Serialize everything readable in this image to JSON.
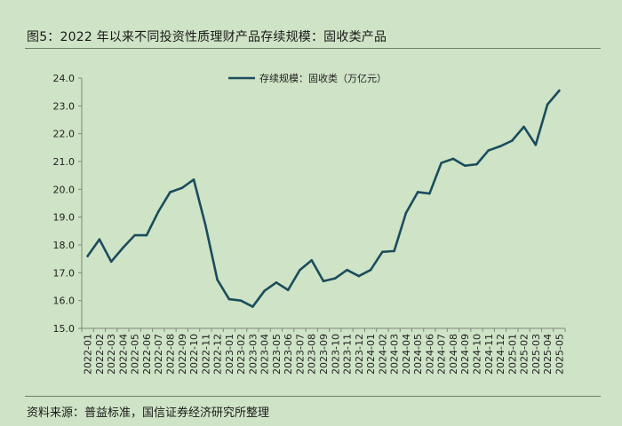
{
  "header": {
    "title": "图5：2022 年以来不同投资性质理财产品存续规模：固收类产品"
  },
  "footer": {
    "source": "资料来源：普益标准，国信证券经济研究所整理"
  },
  "chart_data": {
    "type": "line",
    "title": "图5：2022 年以来不同投资性质理财产品存续规模：固收类产品",
    "xlabel": "",
    "ylabel": "",
    "ylim": [
      15.0,
      24.0
    ],
    "yticks": [
      "15.0",
      "16.0",
      "17.0",
      "18.0",
      "19.0",
      "20.0",
      "21.0",
      "22.0",
      "23.0",
      "24.0"
    ],
    "grid": false,
    "legend_position": "top-center",
    "line_color": "#1b4d5c",
    "x": [
      "2022-01",
      "2022-02",
      "2022-03",
      "2022-04",
      "2022-05",
      "2022-06",
      "2022-07",
      "2022-08",
      "2022-09",
      "2022-10",
      "2022-11",
      "2022-12",
      "2023-01",
      "2023-02",
      "2023-03",
      "2023-04",
      "2023-05",
      "2023-06",
      "2023-07",
      "2023-08",
      "2023-09",
      "2023-10",
      "2023-11",
      "2023-12",
      "2024-01",
      "2024-02",
      "2024-03",
      "2024-04",
      "2024-05",
      "2024-06",
      "2024-07",
      "2024-08",
      "2024-09",
      "2024-10",
      "2024-11",
      "2024-12",
      "2025-01",
      "2025-02",
      "2025-03",
      "2025-04",
      "2025-05"
    ],
    "series": [
      {
        "name": "存续规模：固收类（万亿元）",
        "values": [
          17.6,
          18.2,
          17.4,
          17.9,
          18.35,
          18.35,
          19.2,
          19.9,
          20.05,
          20.35,
          18.7,
          16.75,
          16.05,
          16.0,
          15.78,
          16.35,
          16.65,
          16.38,
          17.1,
          17.45,
          16.7,
          16.8,
          17.1,
          16.88,
          17.1,
          17.75,
          17.78,
          19.15,
          19.9,
          19.85,
          20.95,
          21.1,
          20.85,
          20.9,
          21.4,
          21.55,
          21.75,
          22.25,
          21.6,
          23.05,
          23.55
        ]
      }
    ]
  }
}
